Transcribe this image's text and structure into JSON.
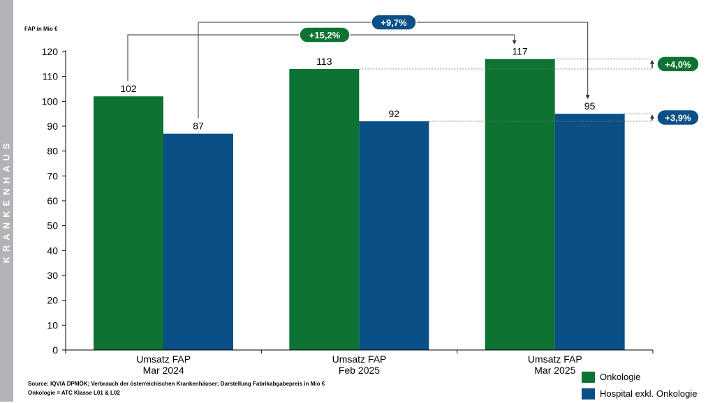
{
  "sidebar": {
    "label": "KRANKENHAUS"
  },
  "chart_data": {
    "type": "bar",
    "ylabel": "FAP in Mio €",
    "ylim": [
      0,
      120
    ],
    "yticks": [
      0,
      10,
      20,
      30,
      40,
      50,
      60,
      70,
      80,
      90,
      100,
      110,
      120
    ],
    "categories": [
      [
        "Umsatz FAP",
        "Mar 2024"
      ],
      [
        "Umsatz FAP",
        "Feb 2025"
      ],
      [
        "Umsatz FAP",
        "Mar 2025"
      ]
    ],
    "series": [
      {
        "name": "Onkologie",
        "color": "#0d7232",
        "values": [
          102,
          113,
          117
        ],
        "labels": [
          "102",
          "113",
          "117"
        ]
      },
      {
        "name": "Hospital exkl. Onkologie",
        "color": "#0a4f86",
        "values": [
          87,
          92,
          95
        ],
        "labels": [
          "87",
          "92",
          "95"
        ]
      }
    ],
    "annotations": {
      "yoy_onkologie": "+15,2%",
      "yoy_hospital": "+9,7%",
      "mom_onkologie": "+4,0%",
      "mom_hospital": "+3,9%"
    },
    "legend_position": "bottom-right",
    "grid": false
  },
  "footer": {
    "source_line1": "Source: IQVIA DPMÖK; Verbrauch der österreichischen Krankenhäuser; Darstellung Fabrikabgabepreis in Mio €",
    "source_line2": "Onkologie = ATC Klasse L01 & L02"
  }
}
